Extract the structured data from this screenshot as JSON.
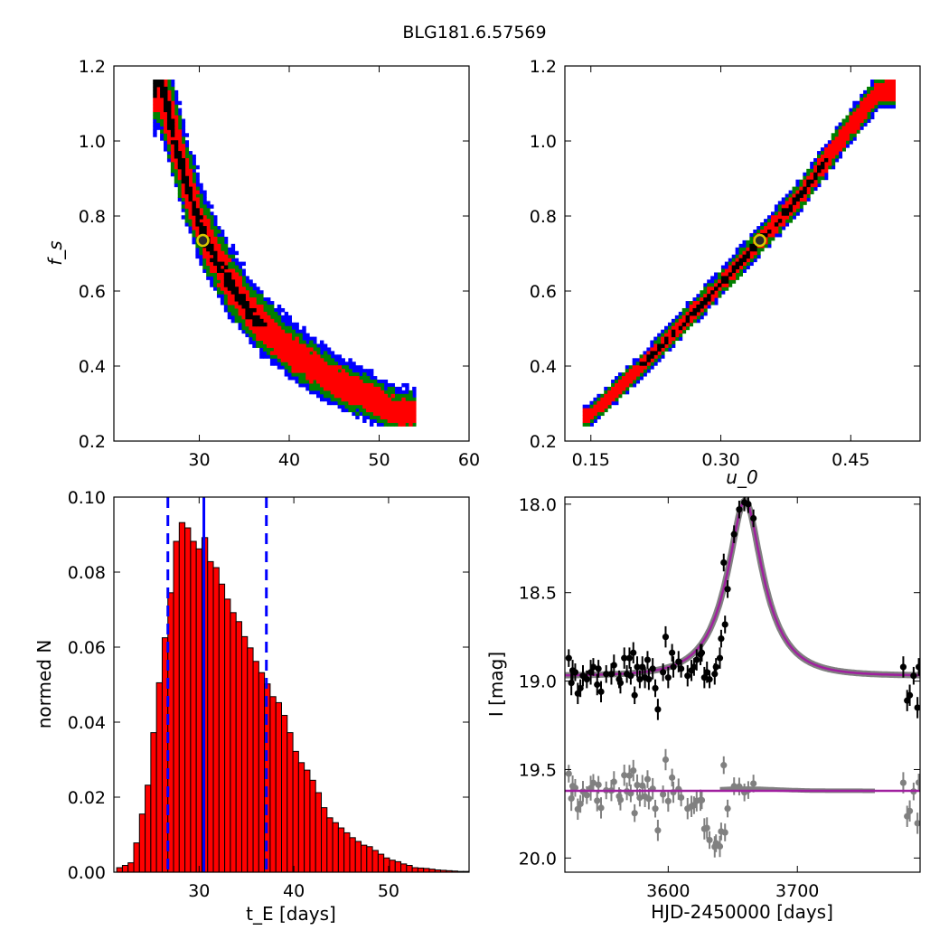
{
  "figure_title": "BLG181.6.57569",
  "colors": {
    "cl_black": "#000000",
    "cl_red": "#ff0000",
    "cl_green": "#008000",
    "cl_blue": "#0000ff",
    "marker_fill": "#2a2a2a",
    "marker_edge": "#d8c800",
    "hist_fill": "#ff0000",
    "hist_edge": "#000000",
    "median_line": "#0000ff",
    "model": "#a0209f",
    "model_band": "#808080",
    "data_dark": "#000000",
    "data_gray": "#808080"
  },
  "chart_data": [
    {
      "type": "heatmap",
      "panel": "top-left",
      "title": "",
      "xlabel": "",
      "ylabel": "f_s",
      "xlim": [
        20.5,
        60
      ],
      "ylim": [
        0.2,
        1.2
      ],
      "xticks": [
        "30",
        "40",
        "50",
        "60"
      ],
      "yticks": [
        "0.2",
        "0.4",
        "0.6",
        "0.8",
        "1.0",
        "1.2"
      ],
      "confidence_levels": [
        "black",
        "red",
        "green",
        "blue"
      ],
      "ridge": [
        [
          25.5,
          1.15
        ],
        [
          27.0,
          1.0
        ],
        [
          28.5,
          0.87
        ],
        [
          30.4,
          0.735
        ],
        [
          33.0,
          0.62
        ],
        [
          36.0,
          0.52
        ],
        [
          40.0,
          0.43
        ],
        [
          45.0,
          0.35
        ],
        [
          52.0,
          0.27
        ]
      ],
      "best_fit": {
        "x": 30.4,
        "y": 0.735
      }
    },
    {
      "type": "heatmap",
      "panel": "top-right",
      "title": "",
      "xlabel": "u_0",
      "ylabel": "",
      "xlim": [
        0.12,
        0.53
      ],
      "ylim": [
        0.2,
        1.2
      ],
      "xticks": [
        "0.15",
        "0.30",
        "0.45"
      ],
      "yticks": [
        "0.2",
        "0.4",
        "0.6",
        "0.8",
        "1.0",
        "1.2"
      ],
      "confidence_levels": [
        "black",
        "red",
        "green",
        "blue"
      ],
      "ridge": [
        [
          0.145,
          0.26
        ],
        [
          0.2,
          0.38
        ],
        [
          0.25,
          0.5
        ],
        [
          0.3,
          0.62
        ],
        [
          0.345,
          0.735
        ],
        [
          0.39,
          0.85
        ],
        [
          0.43,
          0.98
        ],
        [
          0.48,
          1.13
        ]
      ],
      "best_fit": {
        "x": 0.345,
        "y": 0.735
      }
    },
    {
      "type": "bar",
      "panel": "bottom-left",
      "title": "",
      "xlabel": "t_E  [days]",
      "ylabel": "normed N",
      "xlim": [
        21,
        58.5
      ],
      "ylim": [
        0.0,
        0.1
      ],
      "xticks": [
        "30",
        "40",
        "50"
      ],
      "yticks": [
        "0.00",
        "0.02",
        "0.04",
        "0.06",
        "0.08",
        "0.10"
      ],
      "bin_start": 21.3,
      "bin_width": 0.6,
      "values": [
        0.0012,
        0.0018,
        0.0025,
        0.0078,
        0.0155,
        0.0232,
        0.0372,
        0.0505,
        0.0625,
        0.0745,
        0.0882,
        0.0932,
        0.0918,
        0.0882,
        0.0862,
        0.0892,
        0.0828,
        0.0812,
        0.0768,
        0.0728,
        0.0692,
        0.0668,
        0.0628,
        0.0598,
        0.0562,
        0.0532,
        0.0502,
        0.0468,
        0.0452,
        0.0418,
        0.0372,
        0.0322,
        0.0292,
        0.0272,
        0.0245,
        0.0212,
        0.0172,
        0.0145,
        0.0132,
        0.0118,
        0.0105,
        0.0092,
        0.0082,
        0.0072,
        0.0068,
        0.0058,
        0.0048,
        0.0038,
        0.0032,
        0.0028,
        0.0022,
        0.0018,
        0.0012,
        0.0011,
        0.001,
        0.0008,
        0.0006,
        0.0005,
        0.0004,
        0.0003,
        0.0002,
        0.0002
      ],
      "median": 30.5,
      "interval": [
        26.7,
        37.1
      ]
    },
    {
      "type": "scatter",
      "panel": "bottom-right",
      "title": "",
      "xlabel": "HJD-2450000 [days]",
      "ylabel": "I [mag]",
      "xlim": [
        3520,
        3795
      ],
      "ylim": [
        20.08,
        17.96
      ],
      "xticks": [
        "3600",
        "3700"
      ],
      "yticks": [
        "18.0",
        "18.5",
        "19.0",
        "19.5",
        "20.0"
      ],
      "model": {
        "t0": 3659.5,
        "u0": 0.345,
        "tE": 30.4,
        "fs": 0.735,
        "I_base": 18.97
      },
      "residual_offset": 19.62,
      "series": [
        {
          "name": "",
          "points": [
            [
              3523,
              18.87,
              0.05
            ],
            [
              3525,
              19.01,
              0.07
            ],
            [
              3526,
              18.94,
              0.06
            ],
            [
              3528,
              18.95,
              0.05
            ],
            [
              3530,
              19.07,
              0.06
            ],
            [
              3532,
              19.04,
              0.05
            ],
            [
              3534,
              18.97,
              0.06
            ],
            [
              3537,
              18.99,
              0.05
            ],
            [
              3540,
              18.95,
              0.07
            ],
            [
              3542,
              18.92,
              0.05
            ],
            [
              3545,
              19.02,
              0.06
            ],
            [
              3546,
              18.93,
              0.05
            ],
            [
              3548,
              19.06,
              0.06
            ],
            [
              3552,
              18.96,
              0.05
            ],
            [
              3556,
              18.96,
              0.06
            ],
            [
              3558,
              18.91,
              0.06
            ],
            [
              3562,
              18.99,
              0.05
            ],
            [
              3563,
              19.01,
              0.06
            ],
            [
              3566,
              18.87,
              0.06
            ],
            [
              3568,
              18.96,
              0.05
            ],
            [
              3570,
              18.87,
              0.06
            ],
            [
              3571,
              18.97,
              0.05
            ],
            [
              3573,
              18.84,
              0.06
            ],
            [
              3574,
              19.08,
              0.05
            ],
            [
              3576,
              18.92,
              0.06
            ],
            [
              3578,
              18.99,
              0.05
            ],
            [
              3580,
              18.92,
              0.06
            ],
            [
              3582,
              18.98,
              0.06
            ],
            [
              3584,
              18.88,
              0.05
            ],
            [
              3585,
              18.99,
              0.06
            ],
            [
              3588,
              18.93,
              0.06
            ],
            [
              3590,
              19.04,
              0.05
            ],
            [
              3592,
              19.16,
              0.06
            ],
            [
              3596,
              18.95,
              0.05
            ],
            [
              3598,
              18.75,
              0.06
            ],
            [
              3600,
              18.98,
              0.06
            ],
            [
              3603,
              18.84,
              0.05
            ],
            [
              3604,
              18.92,
              0.06
            ],
            [
              3608,
              18.89,
              0.06
            ],
            [
              3610,
              18.93,
              0.05
            ],
            [
              3615,
              18.97,
              0.06
            ],
            [
              3618,
              18.94,
              0.06
            ],
            [
              3620,
              18.92,
              0.05
            ],
            [
              3622,
              18.88,
              0.06
            ],
            [
              3625,
              18.85,
              0.06
            ],
            [
              3626,
              18.84,
              0.05
            ],
            [
              3628,
              18.98,
              0.06
            ],
            [
              3630,
              18.95,
              0.06
            ],
            [
              3632,
              18.99,
              0.05
            ],
            [
              3636,
              18.96,
              0.06
            ],
            [
              3637,
              18.92,
              0.05
            ],
            [
              3640,
              18.87,
              0.06
            ],
            [
              3641,
              18.76,
              0.05
            ],
            [
              3643,
              18.33,
              0.05
            ],
            [
              3644,
              18.68,
              0.05
            ],
            [
              3646,
              18.48,
              0.05
            ],
            [
              3651,
              18.17,
              0.05
            ],
            [
              3655,
              18.03,
              0.05
            ],
            [
              3659,
              17.99,
              0.05
            ],
            [
              3662,
              18.0,
              0.05
            ],
            [
              3666,
              18.08,
              0.05
            ],
            [
              3782,
              18.92,
              0.06
            ],
            [
              3785,
              19.11,
              0.06
            ],
            [
              3787,
              19.08,
              0.06
            ],
            [
              3790,
              18.97,
              0.05
            ],
            [
              3793,
              19.15,
              0.06
            ],
            [
              3794,
              18.92,
              0.05
            ]
          ]
        }
      ]
    }
  ]
}
